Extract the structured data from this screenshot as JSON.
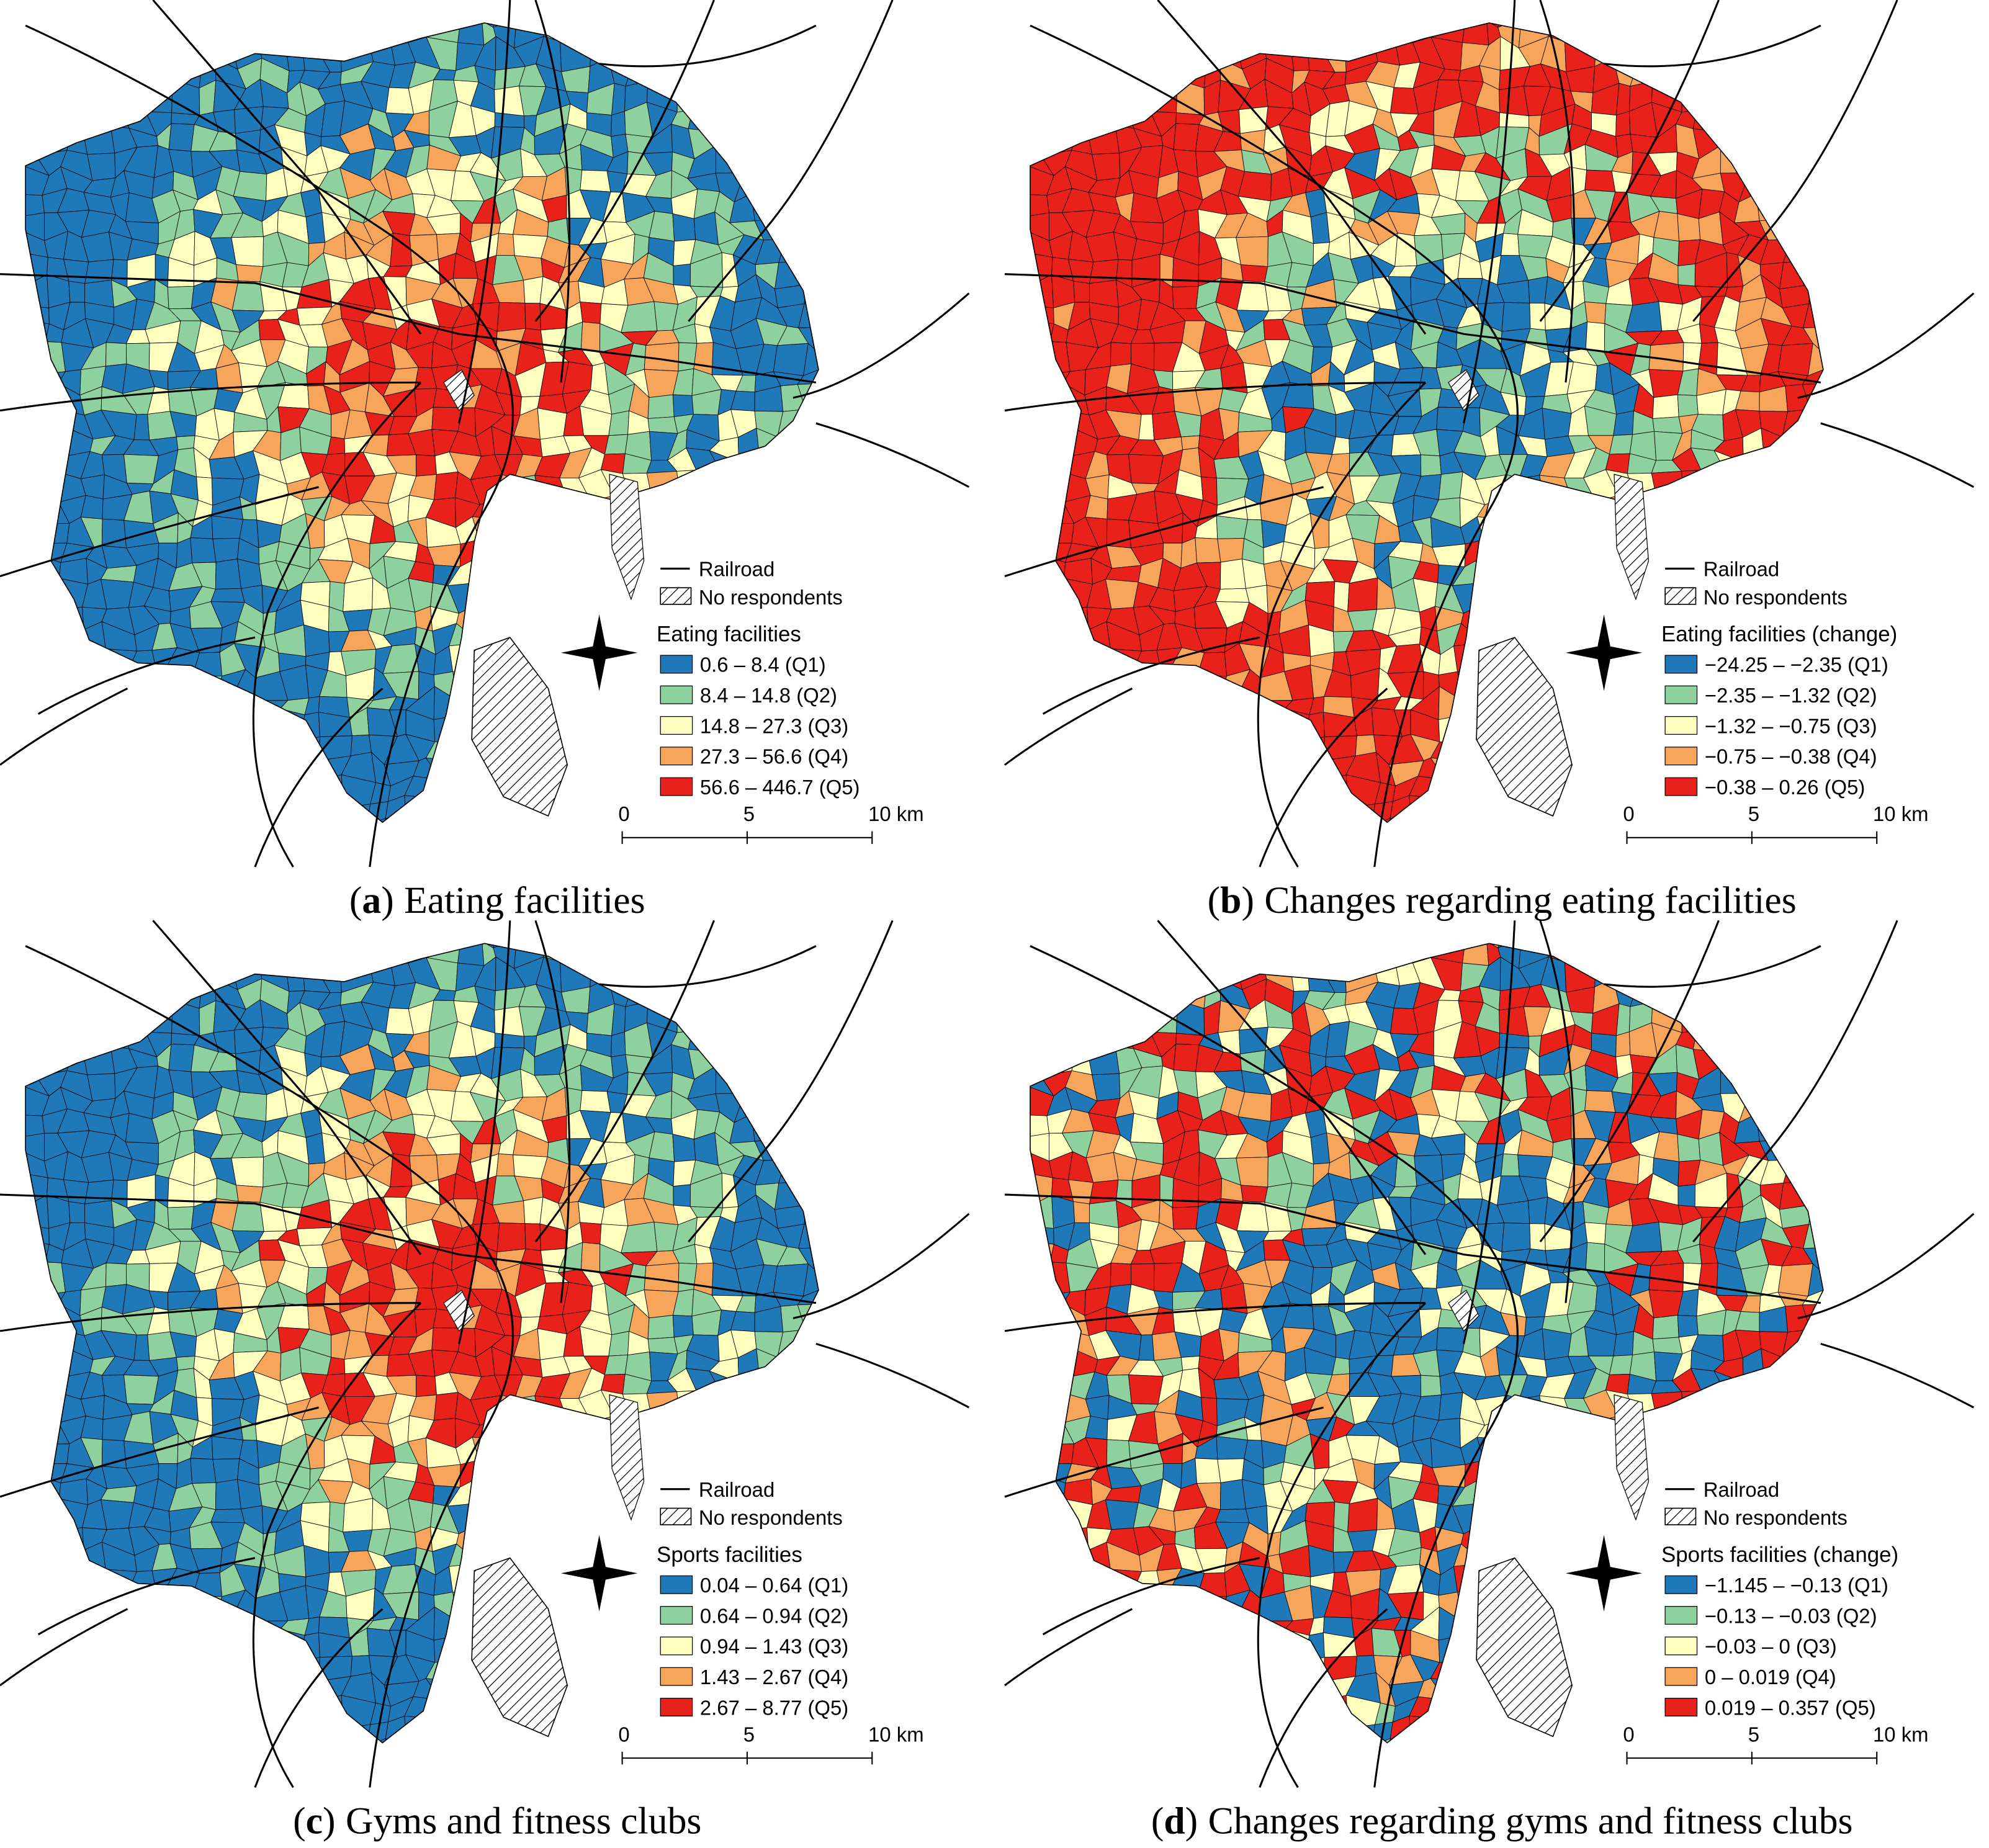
{
  "panels": [
    {
      "caption": {
        "open": "(",
        "letter": "a",
        "close": ")",
        "text": "Eating facilities"
      },
      "legend": {
        "railroad": "Railroad",
        "no_respondents": "No respondents",
        "title": "Eating facilities",
        "items": [
          {
            "label": "0.6 – 8.4 (Q1)",
            "color": "#1f78b8"
          },
          {
            "label": "8.4 – 14.8 (Q2)",
            "color": "#8fd19e"
          },
          {
            "label": "14.8 – 27.3 (Q3)",
            "color": "#ffffbf"
          },
          {
            "label": "27.3 – 56.6 (Q4)",
            "color": "#f6a55b"
          },
          {
            "label": "56.6 – 446.7 (Q5)",
            "color": "#e8211b"
          }
        ]
      },
      "scale_bar": {
        "labels": [
          "0",
          "5",
          "10 km"
        ]
      }
    },
    {
      "caption": {
        "open": "(",
        "letter": "b",
        "close": ")",
        "text": "Changes regarding eating facilities"
      },
      "legend": {
        "railroad": "Railroad",
        "no_respondents": "No respondents",
        "title": "Eating facilities (change)",
        "items": [
          {
            "label": "−24.25 – −2.35 (Q1)",
            "color": "#1f78b8"
          },
          {
            "label": "−2.35 – −1.32 (Q2)",
            "color": "#8fd19e"
          },
          {
            "label": "−1.32 – −0.75 (Q3)",
            "color": "#ffffbf"
          },
          {
            "label": "−0.75 – −0.38 (Q4)",
            "color": "#f6a55b"
          },
          {
            "label": "−0.38 – 0.26 (Q5)",
            "color": "#e8211b"
          }
        ]
      },
      "scale_bar": {
        "labels": [
          "0",
          "5",
          "10 km"
        ]
      }
    },
    {
      "caption": {
        "open": "(",
        "letter": "c",
        "close": ")",
        "text": "Gyms and fitness clubs"
      },
      "legend": {
        "railroad": "Railroad",
        "no_respondents": "No respondents",
        "title": "Sports facilities",
        "items": [
          {
            "label": "0.04 – 0.64 (Q1)",
            "color": "#1f78b8"
          },
          {
            "label": "0.64 – 0.94 (Q2)",
            "color": "#8fd19e"
          },
          {
            "label": "0.94 – 1.43 (Q3)",
            "color": "#ffffbf"
          },
          {
            "label": "1.43 – 2.67 (Q4)",
            "color": "#f6a55b"
          },
          {
            "label": "2.67 – 8.77 (Q5)",
            "color": "#e8211b"
          }
        ]
      },
      "scale_bar": {
        "labels": [
          "0",
          "5",
          "10 km"
        ]
      }
    },
    {
      "caption": {
        "open": "(",
        "letter": "d",
        "close": ")",
        "text": "Changes regarding gyms and fitness clubs"
      },
      "legend": {
        "railroad": "Railroad",
        "no_respondents": "No respondents",
        "title": "Sports facilities (change)",
        "items": [
          {
            "label": "−1.145 – −0.13 (Q1)",
            "color": "#1f78b8"
          },
          {
            "label": "−0.13 – −0.03 (Q2)",
            "color": "#8fd19e"
          },
          {
            "label": "−0.03 – 0 (Q3)",
            "color": "#ffffbf"
          },
          {
            "label": "0 – 0.019 (Q4)",
            "color": "#f6a55b"
          },
          {
            "label": "0.019 – 0.357 (Q5)",
            "color": "#e8211b"
          }
        ]
      },
      "scale_bar": {
        "labels": [
          "0",
          "5",
          "10 km"
        ]
      }
    }
  ]
}
